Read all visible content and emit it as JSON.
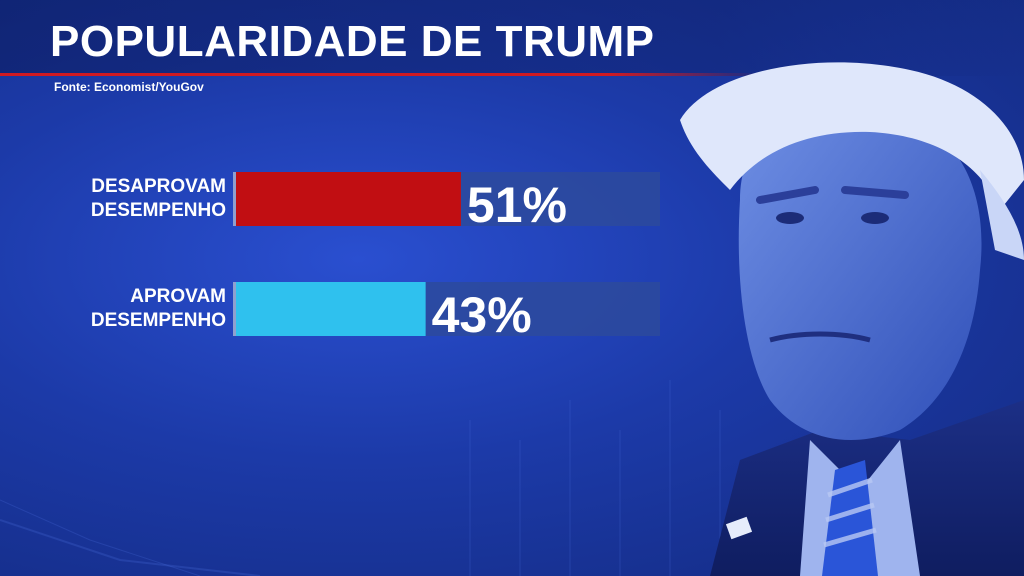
{
  "header": {
    "title": "POPULARIDADE DE TRUMP",
    "source": "Fonte: Economist/YouGov"
  },
  "chart_data": {
    "type": "bar",
    "orientation": "horizontal",
    "xlim": [
      0,
      100
    ],
    "categories": [
      [
        "DESAPROVAM",
        "DESEMPENHO"
      ],
      [
        "APROVAM",
        "DESEMPENHO"
      ]
    ],
    "values": [
      51,
      43
    ],
    "value_labels": [
      "51%",
      "43%"
    ],
    "colors": [
      "#c10e12",
      "#2fc1ee"
    ],
    "track_color": "#2d4a9c",
    "grid": false,
    "legend": "none"
  }
}
